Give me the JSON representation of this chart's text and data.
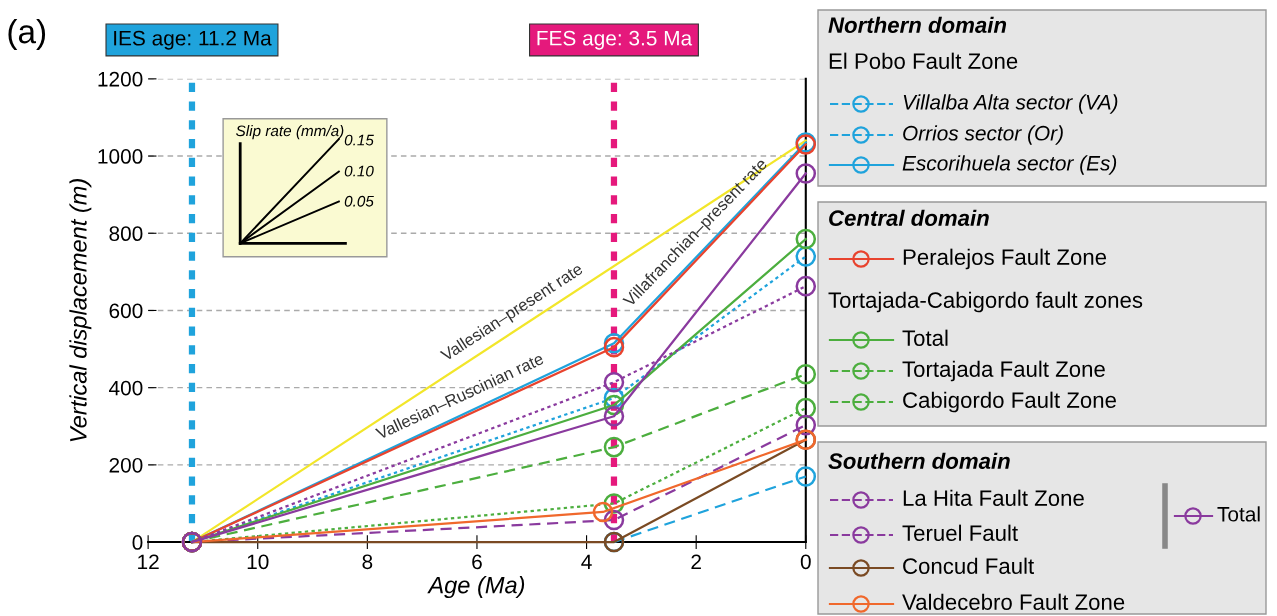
{
  "chart_data": {
    "type": "line",
    "xlabel": "Age (Ma)",
    "ylabel": "Vertical displacement (m)",
    "xlim": [
      12,
      0
    ],
    "xticks": [
      12,
      10,
      8,
      6,
      4,
      2,
      0
    ],
    "ylim": [
      0,
      1200
    ],
    "yticks": [
      0,
      200,
      400,
      600,
      800,
      1000,
      1200
    ],
    "grid": "y",
    "legend": "right",
    "marker": "circle",
    "series": [
      {
        "color": "#f2e62a",
        "x": [
          11.2,
          0
        ],
        "values": [
          0,
          1040
        ],
        "marker": "none",
        "line_style": "solid"
      },
      {
        "name": "Villalba Alta sector (VA)",
        "color": "#1fa3dc",
        "x": [
          3.5,
          0
        ],
        "values": [
          0,
          170
        ],
        "line_style": "dashed"
      },
      {
        "name": "Orrios sector (Or)",
        "color": "#1fa3dc",
        "x": [
          11.2,
          3.5,
          0
        ],
        "values": [
          0,
          373,
          740
        ],
        "line_style": "dotted"
      },
      {
        "name": "Escorihuela sector (Es)",
        "color": "#1fa3dc",
        "x": [
          11.2,
          3.5,
          0
        ],
        "values": [
          0,
          515,
          1035
        ],
        "line_style": "solid"
      },
      {
        "name": "Peralejos Fault Zone",
        "color": "#e8432e",
        "x": [
          11.2,
          3.5,
          0
        ],
        "values": [
          0,
          505,
          1030
        ],
        "line_style": "solid"
      },
      {
        "name": "Total",
        "color": "#4cae3e",
        "x": [
          11.2,
          3.5,
          0
        ],
        "values": [
          0,
          355,
          785
        ],
        "line_style": "solid"
      },
      {
        "name": "Tortajada Fault Zone",
        "color": "#4cae3e",
        "x": [
          11.2,
          3.5,
          0
        ],
        "values": [
          0,
          100,
          347
        ],
        "line_style": "dotted"
      },
      {
        "name": "Cabigordo Fault Zone",
        "color": "#4cae3e",
        "x": [
          11.2,
          3.5,
          0
        ],
        "values": [
          0,
          246,
          435
        ],
        "line_style": "dashed"
      },
      {
        "name": "La Hita Fault Zone",
        "color": "#8a3a9e",
        "x": [
          11.2,
          3.5,
          0
        ],
        "values": [
          0,
          414,
          663
        ],
        "line_style": "dotted"
      },
      {
        "name": "Teruel Fault",
        "color": "#8a3a9e",
        "x": [
          11.2,
          3.5,
          0
        ],
        "values": [
          0,
          57,
          303
        ],
        "line_style": "dashed"
      },
      {
        "name": "Concud Fault",
        "color": "#7a4a23",
        "x": [
          11.2,
          3.5,
          0
        ],
        "values": [
          0,
          0,
          265
        ],
        "line_style": "solid"
      },
      {
        "name": "Valdecebro Fault Zone",
        "color": "#f0682c",
        "x": [
          11.2,
          3.7,
          0
        ],
        "values": [
          0,
          78,
          265
        ],
        "line_style": "solid"
      },
      {
        "name": "Total",
        "color": "#8a3a9e",
        "x": [
          11.2,
          3.5,
          0
        ],
        "values": [
          0,
          326,
          955
        ],
        "line_style": "solid"
      }
    ],
    "ref_lines": [
      {
        "axis": "x",
        "value": 11.2,
        "label": "IES age: 11.2 Ma",
        "color": "#1fa3dc",
        "line_style": "dotted"
      },
      {
        "axis": "x",
        "value": 3.5,
        "label": "FES age: 3.5 Ma",
        "color": "#e5197c",
        "line_style": "dotted"
      }
    ],
    "annotations": [
      "(a)",
      "Slip rate (mm/a)",
      "0.15",
      "0.10",
      "0.05",
      "Vallesian–present rate",
      "Vallesian–Ruscinian rate",
      "Villafranchian–present rate",
      "Northern domain",
      "El Pobo Fault Zone",
      "Central domain",
      "Tortajada-Cabigordo fault zones",
      "Southern domain"
    ]
  }
}
